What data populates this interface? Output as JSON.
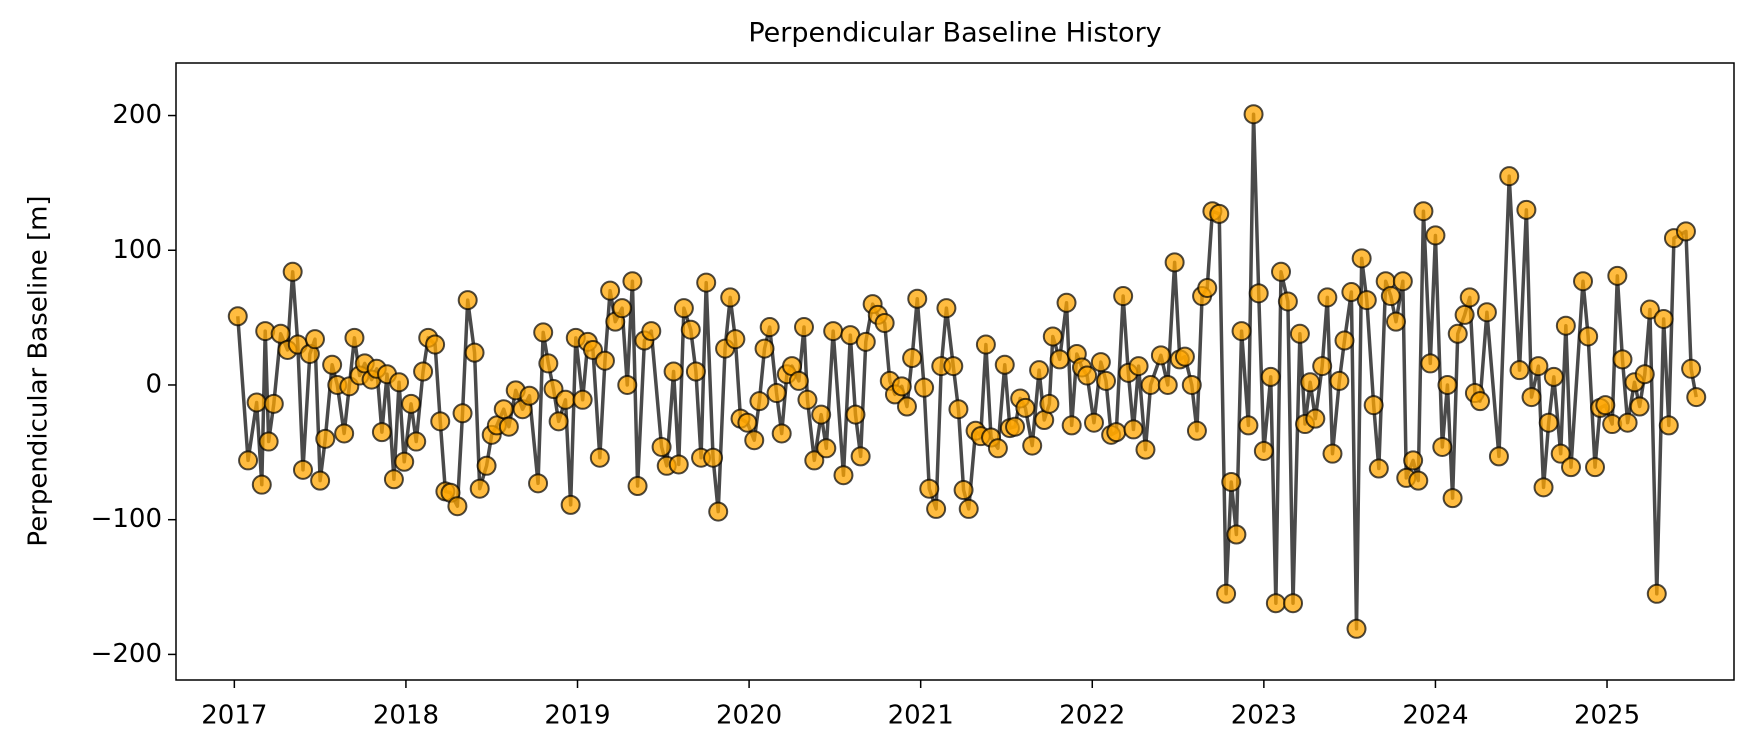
{
  "chart_data": {
    "type": "line",
    "title": "Perpendicular Baseline History",
    "ylabel": "Perpendicular Baseline [m]",
    "marker_color": "#ffa500",
    "line_color": "#404040",
    "xlim": [
      2016.66,
      2025.74
    ],
    "ylim": [
      -219,
      239
    ],
    "xticks": [
      2017,
      2018,
      2019,
      2020,
      2021,
      2022,
      2023,
      2024,
      2025
    ],
    "yticks": [
      {
        "value": -200,
        "label": "−200"
      },
      {
        "value": -100,
        "label": "−100"
      },
      0,
      100,
      200
    ],
    "x": [
      2017.02,
      2017.08,
      2017.13,
      2017.16,
      2017.18,
      2017.2,
      2017.23,
      2017.27,
      2017.31,
      2017.34,
      2017.37,
      2017.4,
      2017.44,
      2017.47,
      2017.5,
      2017.53,
      2017.57,
      2017.6,
      2017.64,
      2017.67,
      2017.7,
      2017.73,
      2017.76,
      2017.8,
      2017.83,
      2017.86,
      2017.89,
      2017.93,
      2017.96,
      2017.99,
      2018.03,
      2018.06,
      2018.1,
      2018.13,
      2018.17,
      2018.2,
      2018.23,
      2018.26,
      2018.3,
      2018.33,
      2018.36,
      2018.4,
      2018.43,
      2018.47,
      2018.5,
      2018.53,
      2018.57,
      2018.6,
      2018.64,
      2018.68,
      2018.72,
      2018.77,
      2018.8,
      2018.83,
      2018.86,
      2018.89,
      2018.93,
      2018.96,
      2018.99,
      2019.03,
      2019.06,
      2019.09,
      2019.13,
      2019.16,
      2019.19,
      2019.22,
      2019.26,
      2019.29,
      2019.32,
      2019.35,
      2019.39,
      2019.43,
      2019.49,
      2019.52,
      2019.56,
      2019.59,
      2019.62,
      2019.66,
      2019.69,
      2019.72,
      2019.75,
      2019.79,
      2019.82,
      2019.86,
      2019.89,
      2019.92,
      2019.95,
      2019.99,
      2020.03,
      2020.06,
      2020.09,
      2020.12,
      2020.16,
      2020.19,
      2020.22,
      2020.25,
      2020.29,
      2020.32,
      2020.34,
      2020.38,
      2020.42,
      2020.45,
      2020.49,
      2020.55,
      2020.59,
      2020.62,
      2020.65,
      2020.68,
      2020.72,
      2020.75,
      2020.79,
      2020.82,
      2020.85,
      2020.89,
      2020.92,
      2020.95,
      2020.98,
      2021.02,
      2021.05,
      2021.09,
      2021.12,
      2021.15,
      2021.19,
      2021.22,
      2021.25,
      2021.28,
      2021.32,
      2021.35,
      2021.38,
      2021.41,
      2021.45,
      2021.49,
      2021.52,
      2021.55,
      2021.58,
      2021.61,
      2021.65,
      2021.69,
      2021.72,
      2021.75,
      2021.77,
      2021.81,
      2021.85,
      2021.88,
      2021.91,
      2021.94,
      2021.97,
      2022.01,
      2022.05,
      2022.08,
      2022.11,
      2022.14,
      2022.18,
      2022.21,
      2022.24,
      2022.27,
      2022.31,
      2022.34,
      2022.4,
      2022.44,
      2022.48,
      2022.51,
      2022.54,
      2022.58,
      2022.61,
      2022.64,
      2022.67,
      2022.7,
      2022.74,
      2022.78,
      2022.81,
      2022.84,
      2022.87,
      2022.91,
      2022.94,
      2022.97,
      2023.0,
      2023.04,
      2023.07,
      2023.1,
      2023.14,
      2023.17,
      2023.21,
      2023.24,
      2023.27,
      2023.3,
      2023.34,
      2023.37,
      2023.4,
      2023.44,
      2023.47,
      2023.51,
      2023.54,
      2023.57,
      2023.6,
      2023.64,
      2023.67,
      2023.71,
      2023.74,
      2023.77,
      2023.81,
      2023.83,
      2023.87,
      2023.9,
      2023.93,
      2023.97,
      2024.0,
      2024.04,
      2024.07,
      2024.1,
      2024.13,
      2024.17,
      2024.2,
      2024.23,
      2024.26,
      2024.3,
      2024.37,
      2024.43,
      2024.49,
      2024.53,
      2024.56,
      2024.6,
      2024.63,
      2024.66,
      2024.69,
      2024.73,
      2024.76,
      2024.79,
      2024.86,
      2024.89,
      2024.93,
      2024.96,
      2024.99,
      2025.03,
      2025.06,
      2025.09,
      2025.12,
      2025.16,
      2025.19,
      2025.22,
      2025.25,
      2025.29,
      2025.33,
      2025.36,
      2025.39,
      2025.46,
      2025.49,
      2025.52
    ],
    "values": [
      51,
      -56,
      -13,
      -74,
      40,
      -42,
      -14,
      38,
      26,
      84,
      30,
      -63,
      23,
      34,
      -71,
      -40,
      15,
      0,
      -36,
      -1,
      35,
      7,
      16,
      4,
      12,
      -35,
      8,
      -70,
      2,
      -57,
      -14,
      -42,
      10,
      35,
      30,
      -27,
      -79,
      -80,
      -90,
      -21,
      63,
      24,
      -77,
      -60,
      -37,
      -30,
      -18,
      -31,
      -4,
      -18,
      -8,
      -73,
      39,
      16,
      -3,
      -27,
      -11,
      -89,
      35,
      -11,
      32,
      26,
      -54,
      18,
      70,
      47,
      57,
      0,
      77,
      -75,
      33,
      40,
      -46,
      -60,
      10,
      -59,
      57,
      41,
      10,
      -54,
      76,
      -54,
      -94,
      27,
      65,
      34,
      -25,
      -28,
      -41,
      -12,
      27,
      43,
      -6,
      -36,
      8,
      14,
      3,
      43,
      -11,
      -56,
      -22,
      -47,
      40,
      -67,
      37,
      -22,
      -53,
      32,
      60,
      52,
      46,
      3,
      -7,
      -1,
      -16,
      20,
      64,
      -2,
      -77,
      -92,
      14,
      57,
      14,
      -18,
      -78,
      -92,
      -34,
      -38,
      30,
      -39,
      -47,
      15,
      -32,
      -31,
      -10,
      -17,
      -45,
      11,
      -26,
      -14,
      36,
      19,
      61,
      -30,
      23,
      13,
      7,
      -28,
      17,
      3,
      -37,
      -35,
      66,
      9,
      -33,
      14,
      -48,
      0,
      22,
      0,
      91,
      19,
      21,
      0,
      -34,
      66,
      72,
      129,
      127,
      -155,
      -72,
      -111,
      40,
      -30,
      201,
      68,
      -49,
      6,
      -162,
      84,
      62,
      -162,
      38,
      -29,
      2,
      -25,
      14,
      65,
      -51,
      3,
      33,
      69,
      -181,
      94,
      63,
      -15,
      -62,
      77,
      66,
      47,
      77,
      -69,
      -56,
      -71,
      129,
      16,
      111,
      -46,
      0,
      -84,
      38,
      52,
      65,
      -6,
      -12,
      54,
      -53,
      155,
      11,
      130,
      -9,
      14,
      -76,
      -28,
      6,
      -51,
      44,
      -61,
      77,
      36,
      -61,
      -17,
      -15,
      -29,
      81,
      19,
      -28,
      2,
      -16,
      8,
      56,
      -155,
      49,
      -30,
      109,
      114,
      12,
      -9
    ]
  }
}
